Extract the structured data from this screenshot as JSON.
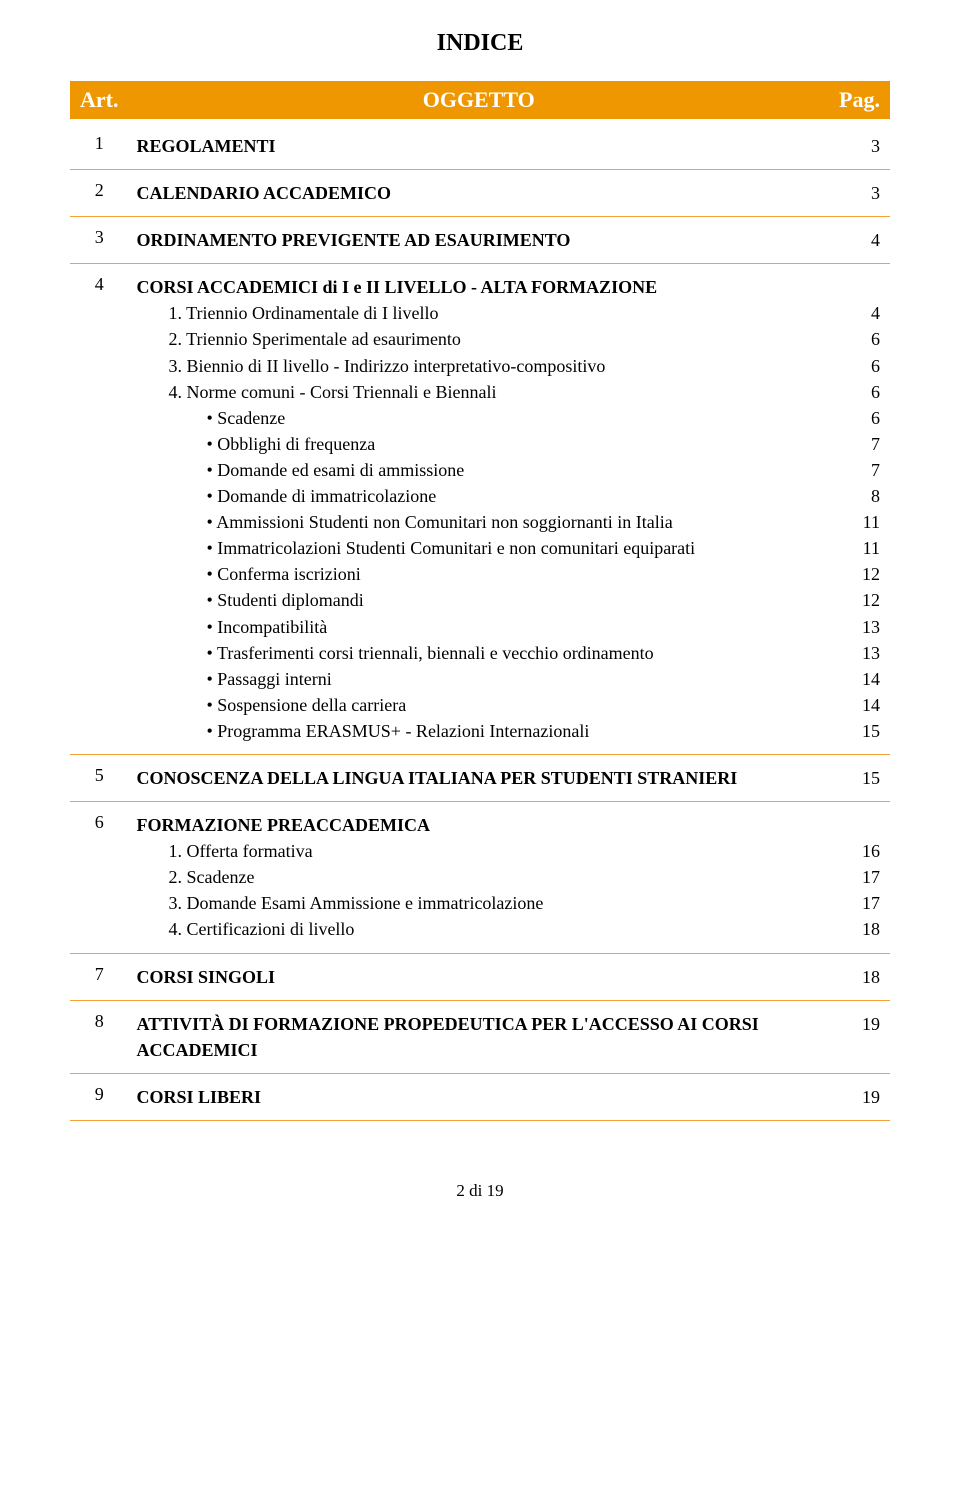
{
  "title": "INDICE",
  "header": {
    "art": "Art.",
    "oggetto": "OGGETTO",
    "pag": "Pag."
  },
  "rows": [
    {
      "art": "1",
      "title": "REGOLAMENTI",
      "pag": "3"
    },
    {
      "art": "2",
      "title": "CALENDARIO ACCADEMICO",
      "pag": "3"
    },
    {
      "art": "3",
      "title": "ORDINAMENTO PREVIGENTE AD ESAURIMENTO",
      "pag": "4"
    },
    {
      "art": "4",
      "title": "CORSI ACCADEMICI di I e II LIVELLO - ALTA FORMAZIONE",
      "pag": "",
      "subs": [
        {
          "text": "1. Triennio Ordinamentale di I livello",
          "pag": "4"
        },
        {
          "text": "2. Triennio Sperimentale ad esaurimento",
          "pag": "6"
        },
        {
          "text": "3. Biennio di II livello - Indirizzo interpretativo-compositivo",
          "pag": "6"
        },
        {
          "text": "4. Norme comuni - Corsi Triennali e Biennali",
          "pag": "6"
        }
      ],
      "bullets": [
        {
          "text": "Scadenze",
          "pag": "6"
        },
        {
          "text": "Obblighi di frequenza",
          "pag": "7"
        },
        {
          "text": "Domande ed esami di ammissione",
          "pag": "7"
        },
        {
          "text": "Domande di immatricolazione",
          "pag": "8"
        },
        {
          "text": "Ammissioni Studenti non Comunitari non soggiornanti in Italia",
          "pag": "11"
        },
        {
          "text": "Immatricolazioni Studenti Comunitari e non comunitari equiparati",
          "pag": "11"
        },
        {
          "text": "Conferma iscrizioni",
          "pag": "12"
        },
        {
          "text": "Studenti diplomandi",
          "pag": "12"
        },
        {
          "text": "Incompatibilità",
          "pag": "13"
        },
        {
          "text": "Trasferimenti corsi triennali, biennali e vecchio ordinamento",
          "pag": "13"
        },
        {
          "text": "Passaggi interni",
          "pag": "14"
        },
        {
          "text": "Sospensione della carriera",
          "pag": "14"
        },
        {
          "text": "Programma ERASMUS+  - Relazioni Internazionali",
          "pag": "15"
        }
      ]
    },
    {
      "art": "5",
      "title": "CONOSCENZA DELLA LINGUA ITALIANA PER STUDENTI STRANIERI",
      "pag": "15"
    },
    {
      "art": "6",
      "title": "FORMAZIONE PREACCADEMICA",
      "pag": "",
      "subs": [
        {
          "text": "1. Offerta formativa",
          "pag": "16"
        },
        {
          "text": "2. Scadenze",
          "pag": "17"
        },
        {
          "text": "3. Domande Esami Ammissione e immatricolazione",
          "pag": "17"
        },
        {
          "text": "4. Certificazioni di livello",
          "pag": "18"
        }
      ]
    },
    {
      "art": "7",
      "title": "CORSI SINGOLI",
      "pag": "18"
    },
    {
      "art": "8",
      "title": "ATTIVITÀ DI FORMAZIONE PROPEDEUTICA PER L'ACCESSO AI CORSI ACCADEMICI",
      "pag": "19"
    },
    {
      "art": "9",
      "title": "CORSI LIBERI",
      "pag": "19"
    }
  ],
  "footer": "2 di 19",
  "colors": {
    "header_bg": "#ef9700",
    "header_fg": "#ffffff",
    "border": "#f1a33a",
    "text": "#000000",
    "bg": "#ffffff"
  },
  "typography": {
    "font_family": "Times New Roman",
    "title_size_pt": 18,
    "body_size_pt": 13
  }
}
